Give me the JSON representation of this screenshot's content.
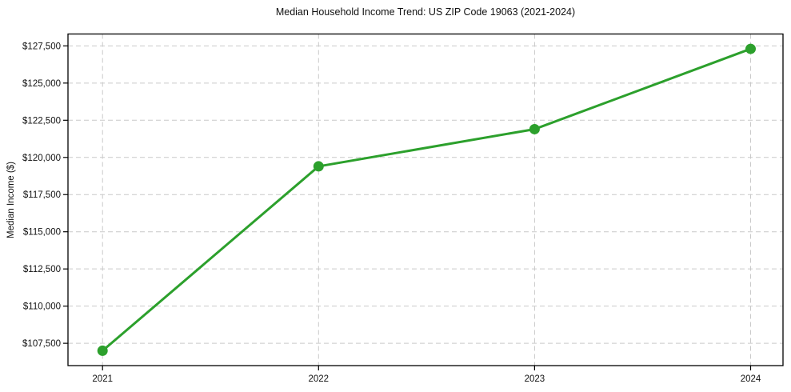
{
  "chart": {
    "title": "Median Household Income Trend: US ZIP Code 19063 (2021-2024)",
    "ylabel": "Median Income ($)"
  },
  "chart_data": {
    "type": "line",
    "title": "Median Household Income Trend: US ZIP Code 19063 (2021-2024)",
    "xlabel": "",
    "ylabel": "Median Income ($)",
    "x": [
      2021,
      2022,
      2023,
      2024
    ],
    "x_tick_labels": [
      "2021",
      "2022",
      "2023",
      "2024"
    ],
    "values": [
      107000,
      119400,
      121900,
      127300
    ],
    "y_ticks": [
      107500,
      110000,
      112500,
      115000,
      117500,
      120000,
      122500,
      125000,
      127500
    ],
    "y_tick_labels": [
      "$107,500",
      "$110,000",
      "$112,500",
      "$115,000",
      "$117,500",
      "$120,000",
      "$122,500",
      "$125,000",
      "$127,500"
    ],
    "xlim": [
      2020.84,
      2024.15
    ],
    "ylim": [
      106000,
      128300
    ],
    "grid": true,
    "grid_style": "dashed",
    "legend": "none",
    "colors": {
      "line": "#2ca02c",
      "marker": "#2ca02c",
      "grid": "#c9c9c9",
      "axis": "#000000",
      "text": "#111111",
      "background": "#ffffff"
    }
  }
}
